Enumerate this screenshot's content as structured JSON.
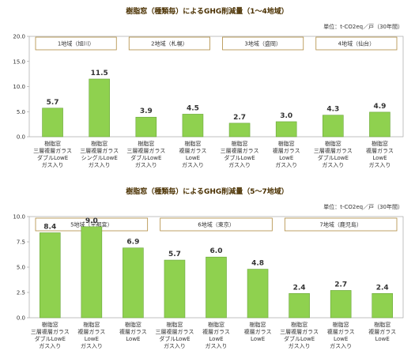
{
  "colors": {
    "bar": "#8fd14f",
    "bar_border": "#6aa63a",
    "frame": "#b08a3e",
    "axis": "#999999"
  },
  "chart_data": [
    {
      "type": "bar",
      "title": "樹脂窓（種類毎）によるGHG削減量（1～4地域）",
      "unit": "単位：t-CO2eq／戸（30年間）",
      "ylim": [
        0,
        20
      ],
      "yticks": [
        "0.0",
        "5.0",
        "10.0",
        "15.0",
        "20.0"
      ],
      "grid": false,
      "regions": [
        {
          "label": "1地域（旭川）",
          "span": [
            0,
            1
          ]
        },
        {
          "label": "2地域（札幌）",
          "span": [
            2,
            3
          ]
        },
        {
          "label": "3地域（盛岡）",
          "span": [
            4,
            5
          ]
        },
        {
          "label": "4地域（仙台）",
          "span": [
            6,
            7
          ]
        }
      ],
      "categories": [
        [
          "樹脂窓",
          "三層複層ガラス",
          "ダブルLowE",
          "ガス入り"
        ],
        [
          "樹脂窓",
          "三層複層ガラス",
          "シングルLowE",
          "ガス入り"
        ],
        [
          "樹脂窓",
          "三層複層ガラス",
          "ダブルLowE",
          "ガス入り"
        ],
        [
          "樹脂窓",
          "複層ガラス",
          "LowE",
          "ガス入り"
        ],
        [
          "樹脂窓",
          "三層複層ガラス",
          "ダブルLowE",
          "ガス入り"
        ],
        [
          "樹脂窓",
          "複層ガラス",
          "LowE",
          "ガス入り"
        ],
        [
          "樹脂窓",
          "三層複層ガラス",
          "ダブルLowE",
          "ガス入り"
        ],
        [
          "樹脂窓",
          "複層ガラス",
          "LowE",
          "ガス入り"
        ]
      ],
      "values": [
        5.7,
        11.5,
        3.9,
        4.5,
        2.7,
        3.0,
        4.3,
        4.9
      ],
      "value_labels": [
        "5.7",
        "11.5",
        "3.9",
        "4.5",
        "2.7",
        "3.0",
        "4.3",
        "4.9"
      ]
    },
    {
      "type": "bar",
      "title": "樹脂窓（種類毎）によるGHG削減量（5～7地域）",
      "unit": "単位：t-CO2eq／戸（30年間）",
      "ylim": [
        0,
        10
      ],
      "yticks": [
        "0.0",
        "2.5",
        "5.0",
        "7.5",
        "10.0"
      ],
      "grid": false,
      "regions": [
        {
          "label": "5地域（宇都宮）",
          "span": [
            0,
            2
          ]
        },
        {
          "label": "6地域（東京）",
          "span": [
            3,
            5
          ]
        },
        {
          "label": "7地域（鹿児島）",
          "span": [
            6,
            8
          ]
        }
      ],
      "categories": [
        [
          "樹脂窓",
          "三層複層ガラス",
          "ダブルLowE",
          "ガス入り"
        ],
        [
          "樹脂窓",
          "複層ガラス",
          "LowE",
          "ガス入り"
        ],
        [
          "樹脂窓",
          "複層ガラス",
          "LowE"
        ],
        [
          "樹脂窓",
          "三層複層ガラス",
          "ダブルLowE",
          "ガス入り"
        ],
        [
          "樹脂窓",
          "複層ガラス",
          "LowE",
          "ガス入り"
        ],
        [
          "樹脂窓",
          "複層ガラス",
          "LowE"
        ],
        [
          "樹脂窓",
          "三層複層ガラス",
          "ダブルLowE",
          "ガス入り"
        ],
        [
          "樹脂窓",
          "複層ガラス",
          "LowE",
          "ガス入り"
        ],
        [
          "樹脂窓",
          "複層ガラス",
          "LowE"
        ]
      ],
      "values": [
        8.4,
        9.0,
        6.9,
        5.7,
        6.0,
        4.8,
        2.4,
        2.7,
        2.4
      ],
      "value_labels": [
        "8.4",
        "9.0",
        "6.9",
        "5.7",
        "6.0",
        "4.8",
        "2.4",
        "2.7",
        "2.4"
      ]
    }
  ]
}
